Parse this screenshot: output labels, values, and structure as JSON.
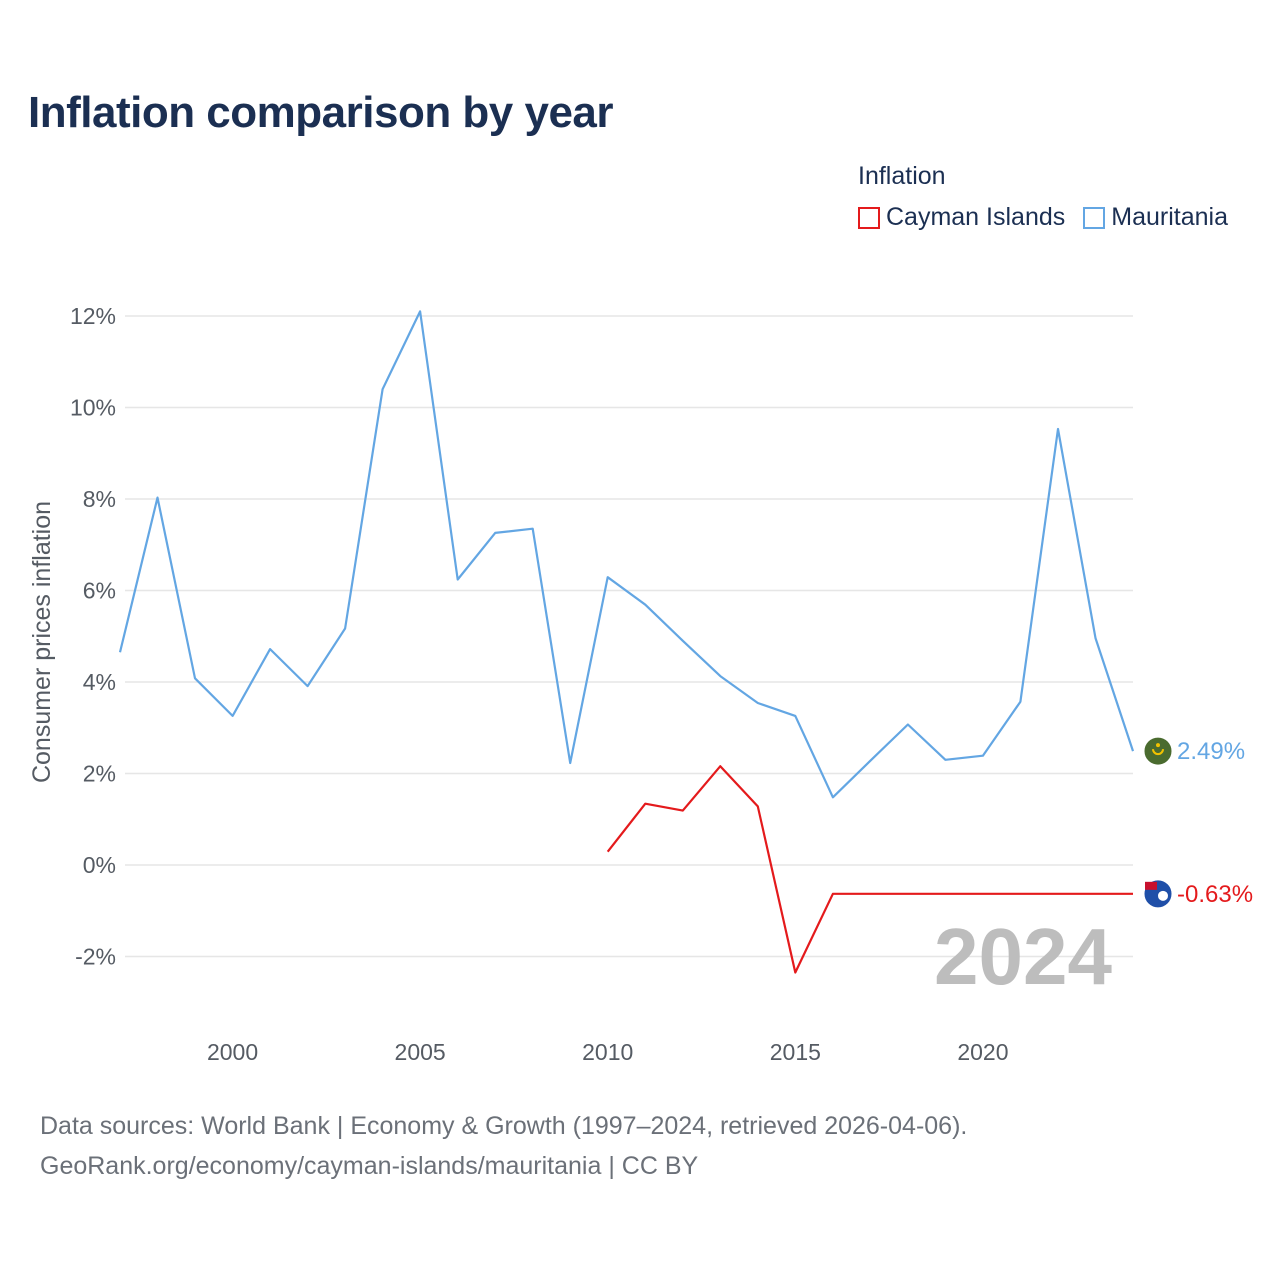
{
  "title": "Inflation comparison by year",
  "legend": {
    "title": "Inflation",
    "items": [
      {
        "label": "Cayman Islands",
        "color": "#e41a1c"
      },
      {
        "label": "Mauritania",
        "color": "#63a6e3"
      }
    ]
  },
  "footer": {
    "line1": "Data sources: World Bank | Economy & Growth (1997–2024, retrieved 2026-04-06).",
    "line2": "GeoRank.org/economy/cayman-islands/mauritania | CC BY"
  },
  "chart_data": {
    "type": "line",
    "ylabel": "Consumer prices inflation",
    "xlim": [
      1997,
      2024
    ],
    "ylim": [
      -3,
      12.5
    ],
    "x_ticks": [
      2000,
      2005,
      2010,
      2015,
      2020
    ],
    "y_ticks": [
      -2,
      0,
      2,
      4,
      6,
      8,
      10,
      12
    ],
    "y_tick_labels": [
      "-2%",
      "0%",
      "2%",
      "4%",
      "6%",
      "8%",
      "10%",
      "12%"
    ],
    "year_watermark": "2024",
    "series": [
      {
        "name": "Mauritania",
        "color": "#63a6e3",
        "end_label": "2.49%",
        "points": [
          [
            1997,
            4.65
          ],
          [
            1998,
            8.03
          ],
          [
            1999,
            4.08
          ],
          [
            2000,
            3.26
          ],
          [
            2001,
            4.72
          ],
          [
            2002,
            3.91
          ],
          [
            2003,
            5.17
          ],
          [
            2004,
            10.4
          ],
          [
            2005,
            12.1
          ],
          [
            2006,
            6.24
          ],
          [
            2007,
            7.26
          ],
          [
            2008,
            7.35
          ],
          [
            2009,
            2.23
          ],
          [
            2010,
            6.29
          ],
          [
            2011,
            5.69
          ],
          [
            2012,
            4.9
          ],
          [
            2013,
            4.13
          ],
          [
            2014,
            3.54
          ],
          [
            2015,
            3.26
          ],
          [
            2016,
            1.48
          ],
          [
            2017,
            2.28
          ],
          [
            2018,
            3.07
          ],
          [
            2019,
            2.3
          ],
          [
            2020,
            2.39
          ],
          [
            2021,
            3.57
          ],
          [
            2022,
            9.53
          ],
          [
            2023,
            4.96
          ],
          [
            2024,
            2.49
          ]
        ]
      },
      {
        "name": "Cayman Islands",
        "color": "#e41a1c",
        "end_label": "-0.63%",
        "points": [
          [
            2010,
            0.29
          ],
          [
            2011,
            1.34
          ],
          [
            2012,
            1.19
          ],
          [
            2013,
            2.16
          ],
          [
            2014,
            1.28
          ],
          [
            2015,
            -2.35
          ],
          [
            2016,
            -0.63
          ],
          [
            2017,
            -0.63
          ],
          [
            2018,
            -0.63
          ],
          [
            2019,
            -0.63
          ],
          [
            2020,
            -0.63
          ],
          [
            2021,
            -0.63
          ],
          [
            2022,
            -0.63
          ],
          [
            2023,
            -0.63
          ],
          [
            2024,
            -0.63
          ]
        ]
      }
    ]
  }
}
